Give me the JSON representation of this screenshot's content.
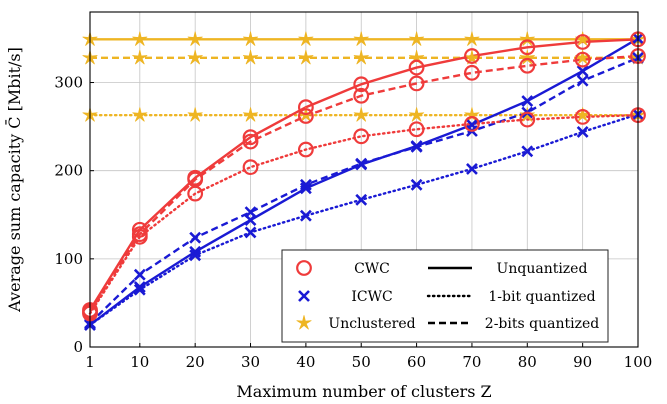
{
  "chart_data": {
    "type": "line",
    "title": "",
    "xlabel": "Maximum number of clusters Z",
    "ylabel": "Average sum capacity C̄ [Mbit/s]",
    "x": [
      1,
      10,
      20,
      30,
      40,
      50,
      60,
      70,
      80,
      90,
      100
    ],
    "xlim": [
      1,
      100
    ],
    "ylim": [
      0,
      380
    ],
    "x_ticks": [
      1,
      10,
      20,
      30,
      40,
      50,
      60,
      70,
      80,
      90,
      100
    ],
    "y_ticks": [
      0,
      100,
      200,
      300
    ],
    "grid": true,
    "legend_position": "bottom-right",
    "colors": {
      "cwc": "#ef3b3b",
      "icwc": "#1a1ad4",
      "unclustered": "#eeb523"
    },
    "series": [
      {
        "scheme": "CWC",
        "quantization": "Unquantized",
        "color": "#ef3b3b",
        "dash": "solid",
        "marker": "circle",
        "values": [
          42,
          133,
          192,
          238,
          272,
          298,
          317,
          330,
          340,
          346,
          349
        ]
      },
      {
        "scheme": "CWC",
        "quantization": "1-bit quantized",
        "color": "#ef3b3b",
        "dash": "dotted",
        "marker": "circle",
        "values": [
          38,
          125,
          174,
          204,
          224,
          239,
          247,
          253,
          258,
          261,
          263
        ]
      },
      {
        "scheme": "CWC",
        "quantization": "2-bits quantized",
        "color": "#ef3b3b",
        "dash": "dashed",
        "marker": "circle",
        "values": [
          40,
          128,
          190,
          233,
          262,
          285,
          299,
          311,
          319,
          326,
          330
        ]
      },
      {
        "scheme": "ICWC",
        "quantization": "Unquantized",
        "color": "#1a1ad4",
        "dash": "solid",
        "marker": "x",
        "values": [
          25,
          68,
          108,
          144,
          180,
          207,
          228,
          252,
          279,
          313,
          350
        ]
      },
      {
        "scheme": "ICWC",
        "quantization": "1-bit quantized",
        "color": "#1a1ad4",
        "dash": "dotted",
        "marker": "x",
        "values": [
          25,
          65,
          104,
          130,
          149,
          167,
          184,
          202,
          222,
          244,
          264
        ]
      },
      {
        "scheme": "ICWC",
        "quantization": "2-bits quantized",
        "color": "#1a1ad4",
        "dash": "dashed",
        "marker": "x",
        "values": [
          27,
          82,
          124,
          153,
          184,
          208,
          227,
          245,
          266,
          302,
          328
        ]
      },
      {
        "scheme": "Unclustered",
        "quantization": "Unquantized",
        "color": "#eeb523",
        "dash": "solid",
        "marker": "star",
        "values": [
          349,
          349,
          349,
          349,
          349,
          349,
          349,
          349,
          349,
          349,
          349
        ]
      },
      {
        "scheme": "Unclustered",
        "quantization": "1-bit quantized",
        "color": "#eeb523",
        "dash": "dotted",
        "marker": "star",
        "values": [
          263,
          263,
          263,
          263,
          263,
          263,
          263,
          263,
          263,
          263,
          263
        ]
      },
      {
        "scheme": "Unclustered",
        "quantization": "2-bits quantized",
        "color": "#eeb523",
        "dash": "dashed",
        "marker": "star",
        "values": [
          328,
          328,
          328,
          328,
          328,
          328,
          328,
          328,
          328,
          328,
          328
        ]
      }
    ],
    "legend": {
      "markers": [
        {
          "label": "CWC",
          "marker": "circle",
          "color": "#ef3b3b"
        },
        {
          "label": "ICWC",
          "marker": "x",
          "color": "#1a1ad4"
        },
        {
          "label": "Unclustered",
          "marker": "star",
          "color": "#eeb523"
        }
      ],
      "lines": [
        {
          "label": "Unquantized",
          "dash": "solid"
        },
        {
          "label": "1-bit quantized",
          "dash": "dotted"
        },
        {
          "label": "2-bits quantized",
          "dash": "dashed"
        }
      ]
    }
  }
}
